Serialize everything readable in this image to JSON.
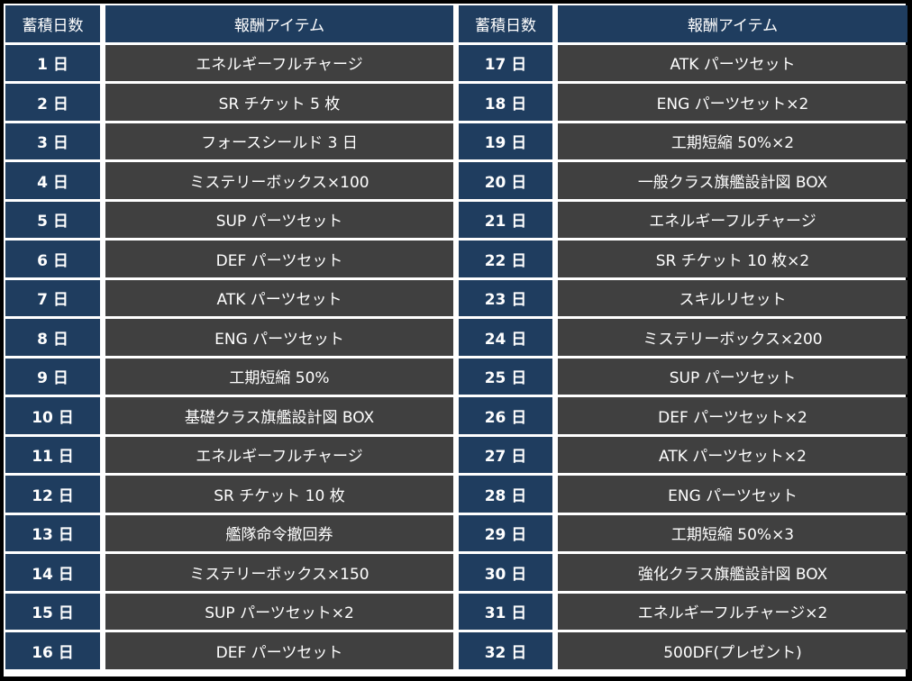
{
  "headers": [
    "蓄積日数",
    "報酬アイテム",
    "蓄積日数",
    "報酬アイテム"
  ],
  "rows": [
    {
      "day": "1 日",
      "item": "エネルギーフルチャージ"
    },
    {
      "day": "2 日",
      "item": "SR チケット 5 枚"
    },
    {
      "day": "3 日",
      "item": "フォースシールド 3 日"
    },
    {
      "day": "4 日",
      "item": "ミステリーボックス×100"
    },
    {
      "day": "5 日",
      "item": "SUP パーツセット"
    },
    {
      "day": "6 日",
      "item": "DEF パーツセット"
    },
    {
      "day": "7 日",
      "item": "ATK パーツセット"
    },
    {
      "day": "8 日",
      "item": "ENG パーツセット"
    },
    {
      "day": "9 日",
      "item": "工期短縮 50%"
    },
    {
      "day": "10 日",
      "item": "基礎クラス旗艦設計図 BOX"
    },
    {
      "day": "11 日",
      "item": "エネルギーフルチャージ"
    },
    {
      "day": "12 日",
      "item": "SR チケット 10 枚"
    },
    {
      "day": "13 日",
      "item": "艦隊命令撤回券"
    },
    {
      "day": "14 日",
      "item": "ミステリーボックス×150"
    },
    {
      "day": "15 日",
      "item": "SUP パーツセット×2"
    },
    {
      "day": "16 日",
      "item": "DEF パーツセット"
    },
    {
      "day": "17 日",
      "item": "ATK パーツセット"
    },
    {
      "day": "18 日",
      "item": "ENG パーツセット×2"
    },
    {
      "day": "19 日",
      "item": "工期短縮 50%×2"
    },
    {
      "day": "20 日",
      "item": "一般クラス旗艦設計図 BOX"
    },
    {
      "day": "21 日",
      "item": "エネルギーフルチャージ"
    },
    {
      "day": "22 日",
      "item": "SR チケット 10 枚×2"
    },
    {
      "day": "23 日",
      "item": "スキルリセット"
    },
    {
      "day": "24 日",
      "item": "ミステリーボックス×200"
    },
    {
      "day": "25 日",
      "item": "SUP パーツセット"
    },
    {
      "day": "26 日",
      "item": "DEF パーツセット×2"
    },
    {
      "day": "27 日",
      "item": "ATK パーツセット×2"
    },
    {
      "day": "28 日",
      "item": "ENG パーツセット"
    },
    {
      "day": "29 日",
      "item": "工期短縮 50%×3"
    },
    {
      "day": "30 日",
      "item": "強化クラス旗艦設計図 BOX"
    },
    {
      "day": "31 日",
      "item": "エネルギーフルチャージ×2"
    },
    {
      "day": "32 日",
      "item": "500DF(プレゼント)"
    }
  ]
}
